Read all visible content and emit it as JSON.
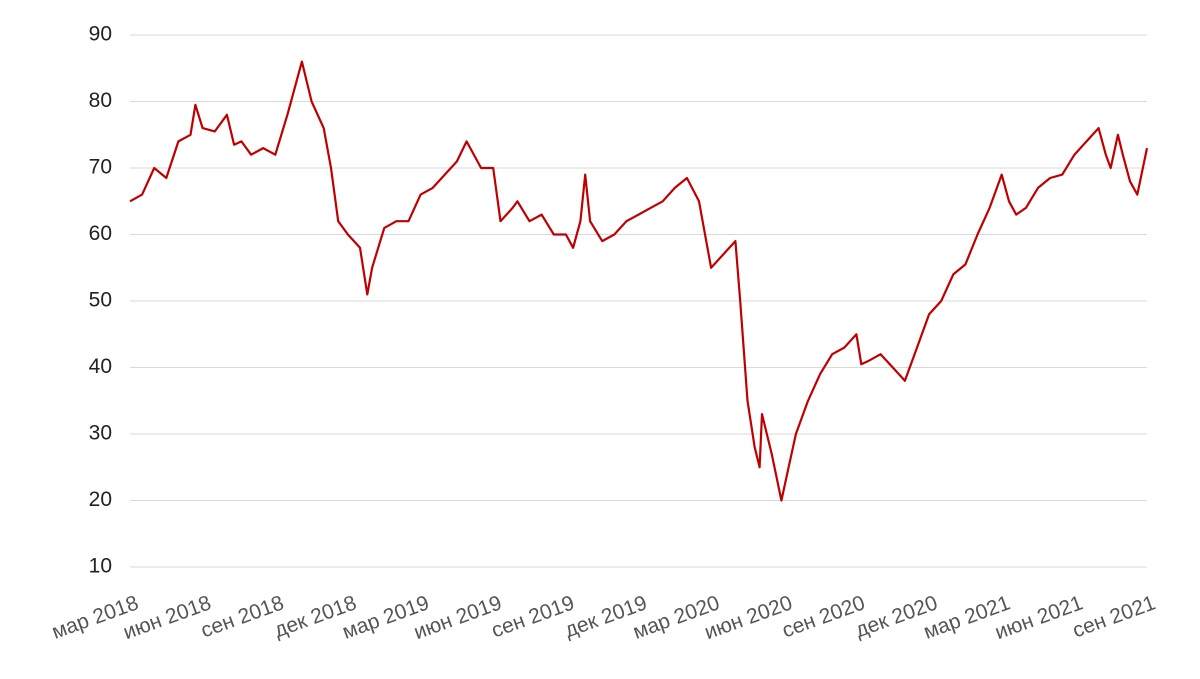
{
  "chart_data": {
    "type": "line",
    "color": "#c00000",
    "grid": true,
    "xlim": [
      0,
      42
    ],
    "ylim": [
      10,
      90
    ],
    "yticks": [
      10,
      20,
      30,
      40,
      50,
      60,
      70,
      80,
      90
    ],
    "xticks": [
      {
        "value": 0,
        "label": "мар 2018"
      },
      {
        "value": 3,
        "label": "июн 2018"
      },
      {
        "value": 6,
        "label": "сен 2018"
      },
      {
        "value": 9,
        "label": "дек 2018"
      },
      {
        "value": 12,
        "label": "мар 2019"
      },
      {
        "value": 15,
        "label": "июн 2019"
      },
      {
        "value": 18,
        "label": "сен 2019"
      },
      {
        "value": 21,
        "label": "дек 2019"
      },
      {
        "value": 24,
        "label": "мар 2020"
      },
      {
        "value": 27,
        "label": "июн 2020"
      },
      {
        "value": 30,
        "label": "сен 2020"
      },
      {
        "value": 33,
        "label": "дек 2020"
      },
      {
        "value": 36,
        "label": "мар 2021"
      },
      {
        "value": 39,
        "label": "июн 2021"
      },
      {
        "value": 42,
        "label": "сен 2021"
      }
    ],
    "x": [
      0,
      0.5,
      1,
      1.5,
      2,
      2.5,
      2.7,
      3,
      3.5,
      4,
      4.3,
      4.6,
      5,
      5.5,
      6,
      6.5,
      7.1,
      7.5,
      8,
      8.3,
      8.6,
      9,
      9.5,
      9.8,
      10,
      10.5,
      11,
      11.5,
      12,
      12.5,
      13,
      13.5,
      13.9,
      14.5,
      15,
      15.3,
      15.8,
      16,
      16.5,
      17,
      17.5,
      18,
      18.3,
      18.6,
      18.8,
      19,
      19.5,
      20,
      20.5,
      21,
      21.5,
      22,
      22.5,
      23,
      23.5,
      24,
      24.5,
      25,
      25.2,
      25.5,
      25.8,
      26,
      26.1,
      26.5,
      26.9,
      27.2,
      27.5,
      28,
      28.5,
      29,
      29.5,
      30,
      30.2,
      30.5,
      31,
      31.5,
      32,
      32.5,
      33,
      33.5,
      34,
      34.5,
      35,
      35.5,
      36,
      36.3,
      36.6,
      37,
      37.5,
      38,
      38.5,
      39,
      39.5,
      40,
      40.3,
      40.5,
      40.8,
      41,
      41.3,
      41.6,
      42
    ],
    "values": [
      65,
      66,
      70,
      68.5,
      74,
      75,
      79.5,
      76,
      75.5,
      78,
      73.5,
      74,
      72,
      73,
      72,
      78,
      86,
      80,
      76,
      70,
      62,
      60,
      58,
      51,
      55,
      61,
      62,
      62,
      66,
      67,
      69,
      71,
      74,
      70,
      70,
      62,
      64,
      65,
      62,
      63,
      60,
      60,
      58,
      62,
      69,
      62,
      59,
      60,
      62,
      63,
      64,
      65,
      67,
      68.5,
      65,
      55,
      57,
      59,
      50,
      35,
      28,
      25,
      33,
      27,
      20,
      25,
      30,
      35,
      39,
      42,
      43,
      45,
      40.5,
      41,
      42,
      40,
      38,
      43,
      48,
      50,
      54,
      55.5,
      60,
      64,
      69,
      65,
      63,
      64,
      67,
      68.5,
      69,
      72,
      74,
      76,
      72,
      70,
      75,
      72,
      68,
      66,
      73
    ]
  }
}
